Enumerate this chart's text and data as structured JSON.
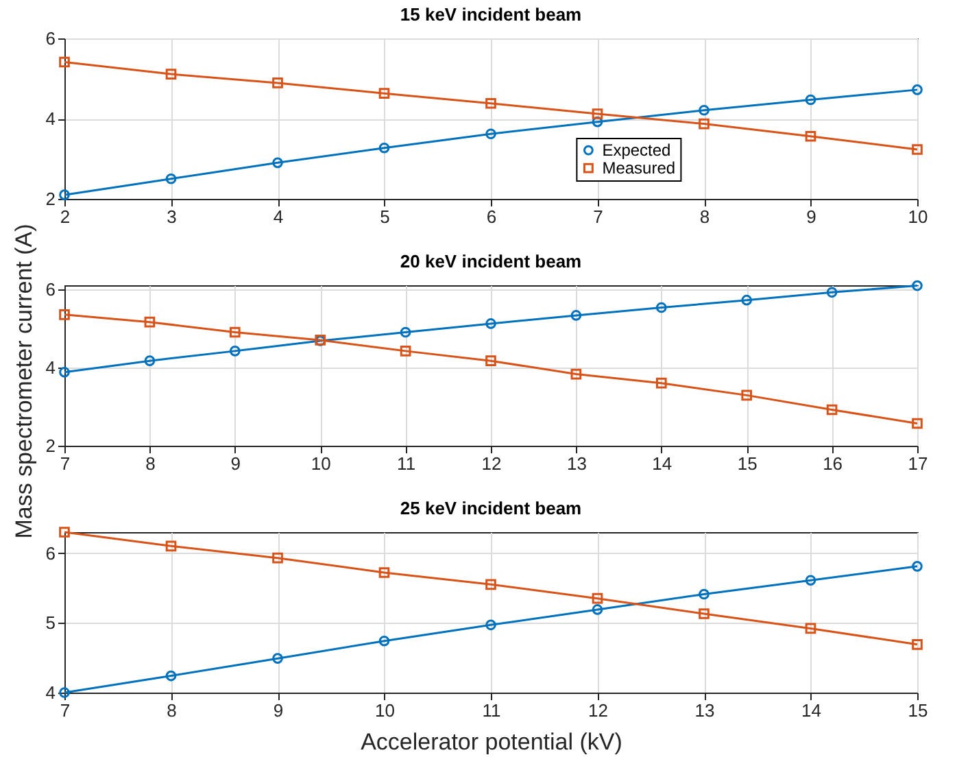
{
  "chart_data": [
    {
      "type": "line",
      "title": "15 keV incident beam",
      "x": [
        2,
        3,
        4,
        5,
        6,
        7,
        8,
        9,
        10
      ],
      "xlim": [
        2,
        10
      ],
      "xticks": [
        2,
        3,
        4,
        5,
        6,
        7,
        8,
        9,
        10
      ],
      "ylim": [
        2,
        6
      ],
      "yticks": [
        2,
        4,
        6
      ],
      "grid": true,
      "legend": "bottom right",
      "series": [
        {
          "name": "Expected",
          "color": "#0072bd",
          "marker": "circle",
          "values": [
            2.1,
            2.5,
            2.9,
            3.27,
            3.62,
            3.92,
            4.21,
            4.47,
            4.72
          ]
        },
        {
          "name": "Measured",
          "color": "#d95319",
          "marker": "square",
          "values": [
            5.41,
            5.11,
            4.89,
            4.63,
            4.38,
            4.12,
            3.87,
            3.56,
            3.23
          ]
        }
      ]
    },
    {
      "type": "line",
      "title": "20 keV incident beam",
      "ylabel": "Mass spectrometer current  (A)",
      "x": [
        7,
        8,
        9,
        10,
        11,
        12,
        13,
        14,
        15,
        16,
        17
      ],
      "xlim": [
        7,
        17
      ],
      "xticks": [
        7,
        8,
        9,
        10,
        11,
        12,
        13,
        14,
        15,
        16,
        17
      ],
      "ylim": [
        2,
        6.1
      ],
      "yticks": [
        2,
        4,
        6
      ],
      "grid": true,
      "series": [
        {
          "color": "#0072bd",
          "marker": "circle",
          "values": [
            3.88,
            4.17,
            4.42,
            4.68,
            4.9,
            5.12,
            5.33,
            5.53,
            5.72,
            5.92,
            6.09
          ]
        },
        {
          "color": "#d95319",
          "marker": "square",
          "values": [
            5.35,
            5.16,
            4.9,
            4.7,
            4.42,
            4.17,
            3.83,
            3.6,
            3.29,
            2.92,
            2.57
          ]
        }
      ]
    },
    {
      "type": "line",
      "title": "25 keV incident beam",
      "xlabel": "Accelerator potential (kV)",
      "x": [
        7,
        8,
        9,
        10,
        11,
        12,
        13,
        14,
        15
      ],
      "xlim": [
        7,
        15
      ],
      "xticks": [
        7,
        8,
        9,
        10,
        11,
        12,
        13,
        14,
        15
      ],
      "ylim": [
        4,
        6.3
      ],
      "yticks": [
        4,
        5,
        6
      ],
      "grid": true,
      "series": [
        {
          "color": "#0072bd",
          "marker": "circle",
          "values": [
            4.0,
            4.24,
            4.49,
            4.74,
            4.97,
            5.19,
            5.41,
            5.61,
            5.81
          ]
        },
        {
          "color": "#d95319",
          "marker": "square",
          "values": [
            6.3,
            6.1,
            5.93,
            5.72,
            5.55,
            5.35,
            5.13,
            4.92,
            4.69
          ]
        }
      ]
    }
  ]
}
